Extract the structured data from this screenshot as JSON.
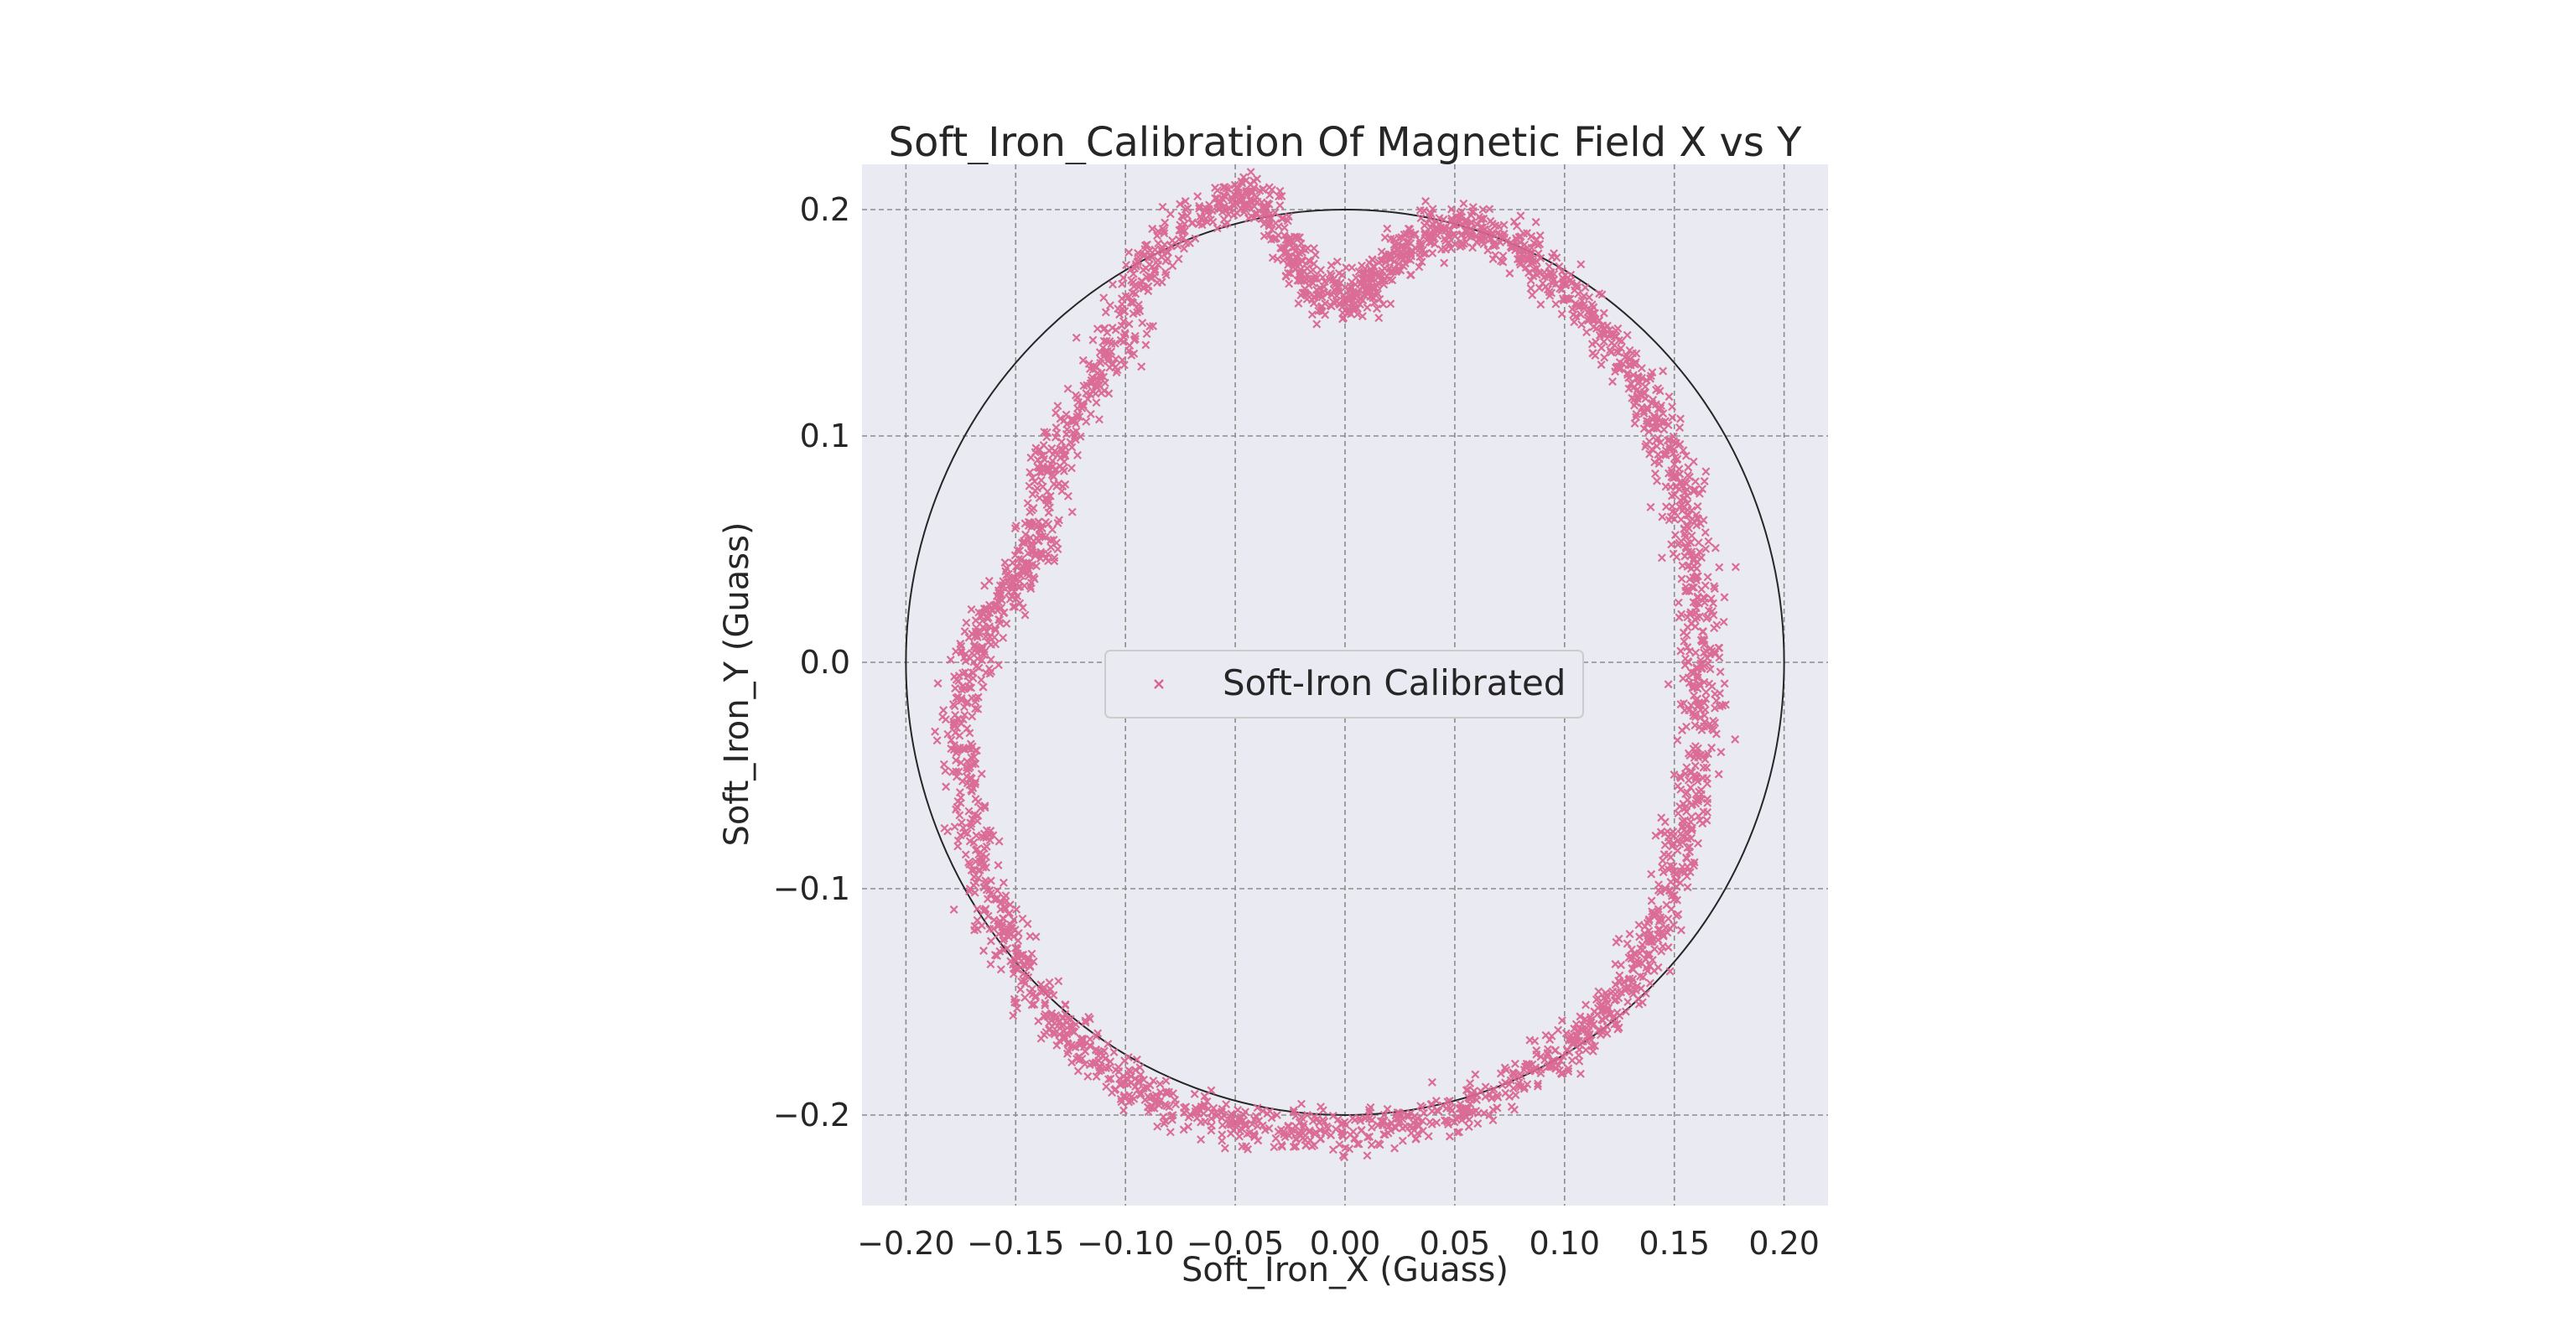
{
  "chart_data": {
    "type": "scatter",
    "title": "Soft_Iron_Calibration Of Magnetic Field X vs Y",
    "xlabel": "Soft_Iron_X (Guass)",
    "ylabel": "Soft_Iron_Y (Guass)",
    "xlim": [
      -0.22,
      0.22
    ],
    "ylim": [
      -0.24,
      0.22
    ],
    "xticks": [
      -0.2,
      -0.15,
      -0.1,
      -0.05,
      0.0,
      0.05,
      0.1,
      0.15,
      0.2
    ],
    "xtick_labels": [
      "−0.20",
      "−0.15",
      "−0.10",
      "−0.05",
      "0.00",
      "0.05",
      "0.10",
      "0.15",
      "0.20"
    ],
    "yticks": [
      0.2,
      0.1,
      0.0,
      -0.1,
      -0.2
    ],
    "ytick_labels": [
      "0.2",
      "0.1",
      "0.0",
      "−0.1",
      "−0.2"
    ],
    "grid": true,
    "legend_position": "center",
    "reference_circle": {
      "center": [
        0.0,
        0.0
      ],
      "radius": 0.2,
      "color": "#262626"
    },
    "series": [
      {
        "name": "Soft-Iron Calibrated",
        "marker": "x",
        "color": "#d9658f",
        "trace": [
          [
            -0.04,
            0.209
          ],
          [
            -0.055,
            0.205
          ],
          [
            -0.075,
            0.19
          ],
          [
            -0.09,
            0.175
          ],
          [
            -0.1,
            0.15
          ],
          [
            -0.11,
            0.13
          ],
          [
            -0.125,
            0.105
          ],
          [
            -0.135,
            0.085
          ],
          [
            -0.14,
            0.06
          ],
          [
            -0.145,
            0.045
          ],
          [
            -0.155,
            0.03
          ],
          [
            -0.165,
            0.012
          ],
          [
            -0.175,
            -0.01
          ],
          [
            -0.175,
            -0.04
          ],
          [
            -0.17,
            -0.07
          ],
          [
            -0.165,
            -0.1
          ],
          [
            -0.155,
            -0.12
          ],
          [
            -0.145,
            -0.14
          ],
          [
            -0.13,
            -0.16
          ],
          [
            -0.115,
            -0.175
          ],
          [
            -0.095,
            -0.19
          ],
          [
            -0.075,
            -0.198
          ],
          [
            -0.05,
            -0.205
          ],
          [
            -0.025,
            -0.208
          ],
          [
            0.0,
            -0.206
          ],
          [
            0.025,
            -0.204
          ],
          [
            0.05,
            -0.198
          ],
          [
            0.075,
            -0.188
          ],
          [
            0.095,
            -0.175
          ],
          [
            0.11,
            -0.162
          ],
          [
            0.125,
            -0.15
          ],
          [
            0.135,
            -0.13
          ],
          [
            0.145,
            -0.11
          ],
          [
            0.152,
            -0.085
          ],
          [
            0.158,
            -0.06
          ],
          [
            0.162,
            -0.03
          ],
          [
            0.162,
            -0.005
          ],
          [
            0.163,
            0.02
          ],
          [
            0.158,
            0.045
          ],
          [
            0.155,
            0.07
          ],
          [
            0.15,
            0.09
          ],
          [
            0.14,
            0.11
          ],
          [
            0.13,
            0.13
          ],
          [
            0.115,
            0.15
          ],
          [
            0.1,
            0.165
          ],
          [
            0.085,
            0.178
          ],
          [
            0.07,
            0.188
          ],
          [
            0.055,
            0.192
          ],
          [
            0.04,
            0.19
          ],
          [
            0.03,
            0.184
          ],
          [
            0.02,
            0.176
          ],
          [
            0.01,
            0.166
          ],
          [
            0.0,
            0.16
          ],
          [
            -0.01,
            0.162
          ],
          [
            -0.02,
            0.175
          ],
          [
            -0.03,
            0.192
          ],
          [
            -0.04,
            0.209
          ]
        ]
      }
    ]
  }
}
